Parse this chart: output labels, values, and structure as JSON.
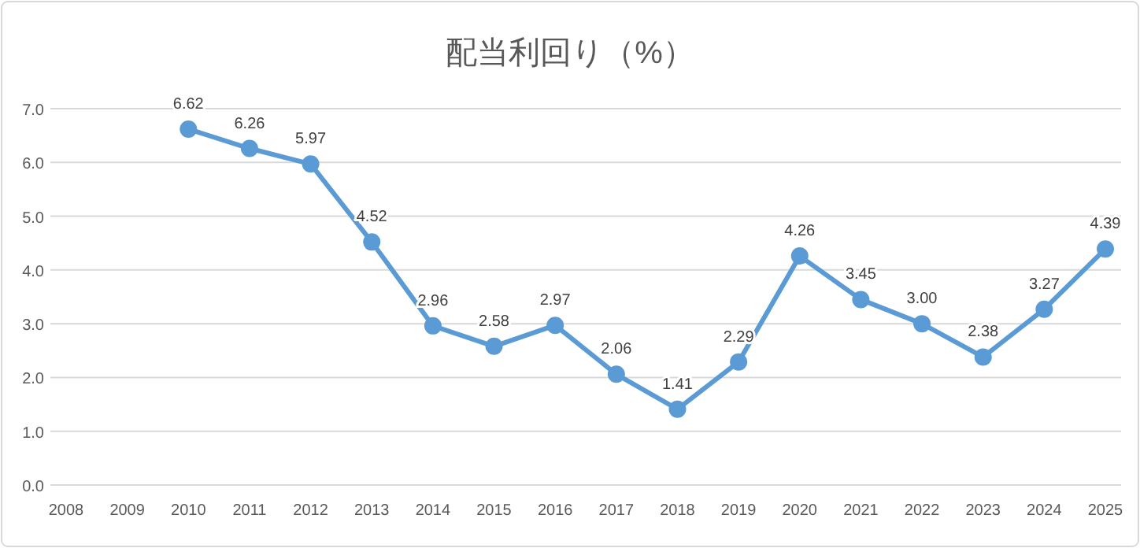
{
  "chart_data": {
    "type": "line",
    "title": "配当利回り（%）",
    "categories": [
      "2008",
      "2009",
      "2010",
      "2011",
      "2012",
      "2013",
      "2014",
      "2015",
      "2016",
      "2017",
      "2018",
      "2019",
      "2020",
      "2021",
      "2022",
      "2023",
      "2024",
      "2025"
    ],
    "series": [
      {
        "color": "#5b9bd5",
        "values": [
          null,
          null,
          6.62,
          6.26,
          5.97,
          4.52,
          2.96,
          2.58,
          2.97,
          2.06,
          1.41,
          2.29,
          4.26,
          3.45,
          3.0,
          2.38,
          3.27,
          4.39
        ],
        "value_labels": [
          null,
          null,
          "6.62",
          "6.26",
          "5.97",
          "4.52",
          "2.96",
          "2.58",
          "2.97",
          "2.06",
          "1.41",
          "2.29",
          "4.26",
          "3.45",
          "3.00",
          "2.38",
          "3.27",
          "4.39"
        ]
      }
    ],
    "ylim": [
      0,
      7
    ],
    "yticks": [
      {
        "value": 0,
        "label": "0.0"
      },
      {
        "value": 1,
        "label": "1.0"
      },
      {
        "value": 2,
        "label": "2.0"
      },
      {
        "value": 3,
        "label": "3.0"
      },
      {
        "value": 4,
        "label": "4.0"
      },
      {
        "value": 5,
        "label": "5.0"
      },
      {
        "value": 6,
        "label": "6.0"
      },
      {
        "value": 7,
        "label": "7.0"
      }
    ],
    "grid": "y",
    "marker": "circle",
    "line_style": "solid"
  }
}
